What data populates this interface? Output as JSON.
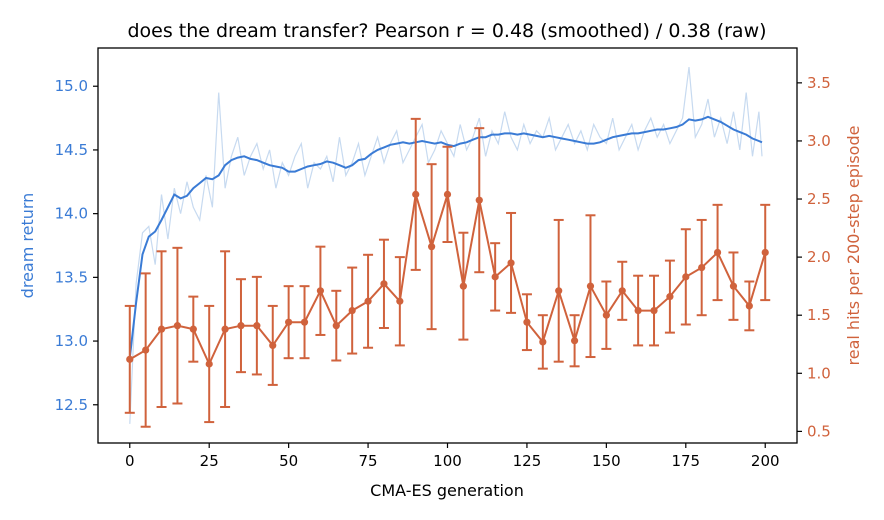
{
  "chart_data": {
    "type": "line",
    "title": "does the dream transfer?   Pearson r = 0.48 (smoothed) / 0.38 (raw)",
    "xlabel": "CMA-ES generation",
    "ylabel_left": "dream return",
    "ylabel_right": "real hits per 200-step episode",
    "xlim": [
      -10,
      210
    ],
    "ylim_left": [
      12.2,
      15.3
    ],
    "ylim_right": [
      0.4,
      3.8
    ],
    "xticks": [
      0,
      25,
      50,
      75,
      100,
      125,
      150,
      175,
      200
    ],
    "yticks_left": [
      12.5,
      13.0,
      13.5,
      14.0,
      14.5,
      15.0
    ],
    "yticks_right": [
      0.5,
      1.0,
      1.5,
      2.0,
      2.5,
      3.0,
      3.5
    ],
    "colors": {
      "left": "#3a7bd5",
      "right": "#d0623c",
      "raw": "#c7daf0"
    },
    "series": [
      {
        "axis": "left",
        "style": "raw",
        "x": [
          0,
          2,
          4,
          6,
          8,
          10,
          12,
          14,
          16,
          18,
          20,
          22,
          24,
          26,
          28,
          30,
          32,
          34,
          36,
          38,
          40,
          42,
          44,
          46,
          48,
          50,
          52,
          54,
          56,
          58,
          60,
          62,
          64,
          66,
          68,
          70,
          72,
          74,
          76,
          78,
          80,
          82,
          84,
          86,
          88,
          90,
          92,
          94,
          96,
          98,
          100,
          102,
          104,
          106,
          108,
          110,
          112,
          114,
          116,
          118,
          120,
          122,
          124,
          126,
          128,
          130,
          132,
          134,
          136,
          138,
          140,
          142,
          144,
          146,
          148,
          150,
          152,
          154,
          156,
          158,
          160,
          162,
          164,
          166,
          168,
          170,
          172,
          174,
          176,
          178,
          180,
          182,
          184,
          186,
          188,
          190,
          192,
          194,
          196,
          198,
          199
        ],
        "y": [
          12.35,
          13.45,
          13.85,
          13.9,
          13.6,
          14.15,
          13.8,
          14.2,
          14.0,
          14.25,
          14.05,
          13.95,
          14.3,
          14.05,
          14.95,
          14.2,
          14.45,
          14.6,
          14.3,
          14.45,
          14.55,
          14.35,
          14.5,
          14.2,
          14.4,
          14.3,
          14.45,
          14.55,
          14.2,
          14.4,
          14.35,
          14.45,
          14.25,
          14.6,
          14.3,
          14.4,
          14.55,
          14.3,
          14.45,
          14.6,
          14.4,
          14.55,
          14.65,
          14.4,
          14.5,
          14.6,
          14.7,
          14.4,
          14.5,
          14.65,
          14.55,
          14.45,
          14.7,
          14.5,
          14.6,
          14.75,
          14.45,
          14.65,
          14.55,
          14.8,
          14.6,
          14.5,
          14.7,
          14.55,
          14.65,
          14.6,
          14.75,
          14.5,
          14.6,
          14.7,
          14.55,
          14.65,
          14.5,
          14.7,
          14.6,
          14.55,
          14.75,
          14.5,
          14.6,
          14.7,
          14.5,
          14.65,
          14.75,
          14.6,
          14.7,
          14.55,
          14.65,
          14.75,
          15.15,
          14.6,
          14.7,
          14.9,
          14.6,
          14.75,
          14.55,
          14.8,
          14.5,
          14.95,
          14.45,
          14.8,
          14.45
        ]
      },
      {
        "axis": "left",
        "style": "smoothed",
        "x": [
          0,
          2,
          4,
          6,
          8,
          10,
          12,
          14,
          16,
          18,
          20,
          22,
          24,
          26,
          28,
          30,
          32,
          34,
          36,
          38,
          40,
          42,
          44,
          46,
          48,
          50,
          52,
          54,
          56,
          58,
          60,
          62,
          64,
          66,
          68,
          70,
          72,
          74,
          76,
          78,
          80,
          82,
          84,
          86,
          88,
          90,
          92,
          94,
          96,
          98,
          100,
          102,
          104,
          106,
          108,
          110,
          112,
          114,
          116,
          118,
          120,
          122,
          124,
          126,
          128,
          130,
          132,
          134,
          136,
          138,
          140,
          142,
          144,
          146,
          148,
          150,
          152,
          154,
          156,
          158,
          160,
          162,
          164,
          166,
          168,
          170,
          172,
          174,
          176,
          178,
          180,
          182,
          184,
          186,
          188,
          190,
          192,
          194,
          196,
          198,
          199
        ],
        "y": [
          12.87,
          13.3,
          13.68,
          13.82,
          13.86,
          13.95,
          14.05,
          14.15,
          14.12,
          14.14,
          14.2,
          14.24,
          14.28,
          14.27,
          14.3,
          14.38,
          14.42,
          14.44,
          14.45,
          14.43,
          14.42,
          14.4,
          14.38,
          14.37,
          14.36,
          14.33,
          14.33,
          14.35,
          14.37,
          14.38,
          14.39,
          14.41,
          14.4,
          14.38,
          14.36,
          14.38,
          14.42,
          14.43,
          14.47,
          14.5,
          14.52,
          14.54,
          14.55,
          14.56,
          14.55,
          14.56,
          14.57,
          14.56,
          14.55,
          14.56,
          14.54,
          14.53,
          14.55,
          14.56,
          14.58,
          14.6,
          14.6,
          14.62,
          14.62,
          14.63,
          14.63,
          14.62,
          14.63,
          14.62,
          14.61,
          14.6,
          14.61,
          14.6,
          14.59,
          14.58,
          14.57,
          14.56,
          14.55,
          14.55,
          14.56,
          14.58,
          14.6,
          14.61,
          14.62,
          14.63,
          14.63,
          14.64,
          14.65,
          14.66,
          14.66,
          14.67,
          14.68,
          14.7,
          14.74,
          14.73,
          14.74,
          14.76,
          14.74,
          14.72,
          14.69,
          14.66,
          14.64,
          14.62,
          14.59,
          14.57,
          14.56
        ]
      },
      {
        "axis": "right",
        "style": "errorbar",
        "x": [
          0,
          5,
          10,
          15,
          20,
          25,
          30,
          35,
          40,
          45,
          50,
          55,
          60,
          65,
          70,
          75,
          80,
          85,
          90,
          95,
          100,
          105,
          110,
          115,
          120,
          125,
          130,
          135,
          140,
          145,
          150,
          155,
          160,
          165,
          170,
          175,
          180,
          185,
          190,
          195,
          200
        ],
        "y": [
          1.12,
          1.2,
          1.38,
          1.41,
          1.38,
          1.08,
          1.38,
          1.41,
          1.41,
          1.24,
          1.44,
          1.44,
          1.71,
          1.41,
          1.54,
          1.62,
          1.77,
          1.62,
          2.54,
          2.09,
          2.54,
          1.75,
          2.49,
          1.83,
          1.95,
          1.44,
          1.27,
          1.71,
          1.28,
          1.75,
          1.5,
          1.71,
          1.54,
          1.54,
          1.66,
          1.83,
          1.91,
          2.04,
          1.75,
          1.58,
          2.04
        ],
        "err": [
          0.46,
          0.66,
          0.67,
          0.67,
          0.28,
          0.5,
          0.67,
          0.4,
          0.42,
          0.34,
          0.31,
          0.31,
          0.38,
          0.3,
          0.37,
          0.4,
          0.38,
          0.38,
          0.65,
          0.71,
          0.41,
          0.46,
          0.62,
          0.29,
          0.43,
          0.24,
          0.23,
          0.61,
          0.22,
          0.61,
          0.29,
          0.25,
          0.3,
          0.3,
          0.31,
          0.41,
          0.41,
          0.41,
          0.29,
          0.21,
          0.41
        ]
      }
    ],
    "grid": false,
    "legend": "none"
  }
}
